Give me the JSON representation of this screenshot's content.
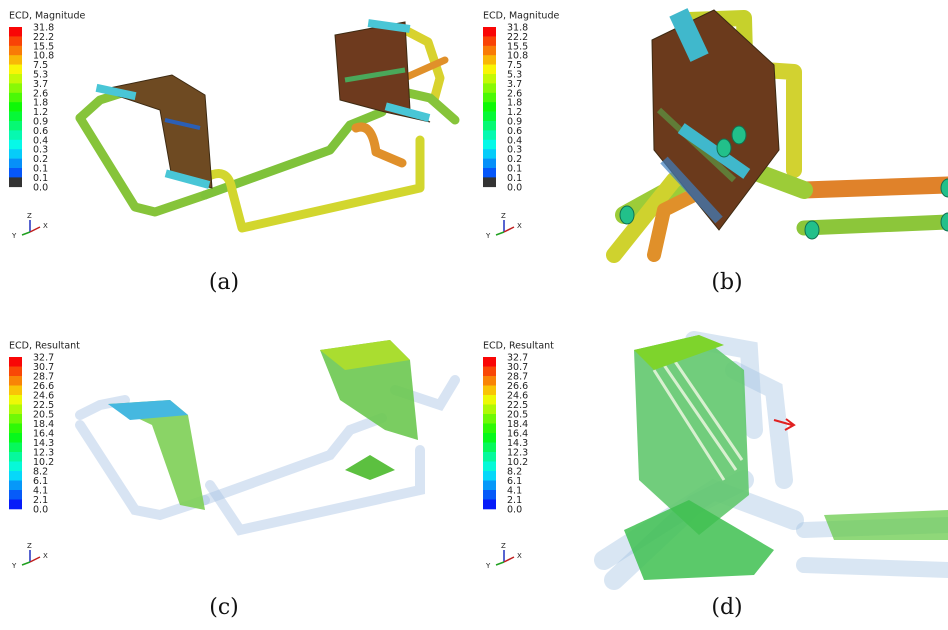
{
  "panels": [
    {
      "legend": {
        "title": "ECD, Magnitude",
        "labels": [
          "31.8",
          "22.2",
          "15.5",
          "10.8",
          "7.5",
          "5.3",
          "3.7",
          "2.6",
          "1.8",
          "1.2",
          "0.9",
          "0.6",
          "0.4",
          "0.3",
          "0.2",
          "0.1",
          "0.1",
          "0.0"
        ]
      },
      "triad": {
        "z": "Z",
        "y": "Y",
        "x": "X"
      },
      "caption": "(a)"
    },
    {
      "legend": {
        "title": "ECD, Magnitude",
        "labels": [
          "31.8",
          "22.2",
          "15.5",
          "10.8",
          "7.5",
          "5.3",
          "3.7",
          "2.6",
          "1.8",
          "1.2",
          "0.9",
          "0.6",
          "0.4",
          "0.3",
          "0.2",
          "0.1",
          "0.1",
          "0.0"
        ]
      },
      "triad": {
        "z": "Z",
        "y": "Y",
        "x": "X"
      },
      "caption": "(b)"
    },
    {
      "legend": {
        "title": "ECD, Resultant",
        "labels": [
          "32.7",
          "30.7",
          "28.7",
          "26.6",
          "24.6",
          "22.5",
          "20.5",
          "18.4",
          "16.4",
          "14.3",
          "12.3",
          "10.2",
          "8.2",
          "6.1",
          "4.1",
          "2.1",
          "0.0"
        ]
      },
      "triad": {
        "z": "Z",
        "y": "Y",
        "x": "X"
      },
      "caption": "(c)"
    },
    {
      "legend": {
        "title": "ECD, Resultant",
        "labels": [
          "32.7",
          "30.7",
          "28.7",
          "26.6",
          "24.6",
          "22.5",
          "20.5",
          "18.4",
          "16.4",
          "14.3",
          "12.3",
          "10.2",
          "8.2",
          "6.1",
          "4.1",
          "2.1",
          "0.0"
        ]
      },
      "triad": {
        "z": "Z",
        "y": "Y",
        "x": "X"
      },
      "caption": "(d)"
    }
  ]
}
